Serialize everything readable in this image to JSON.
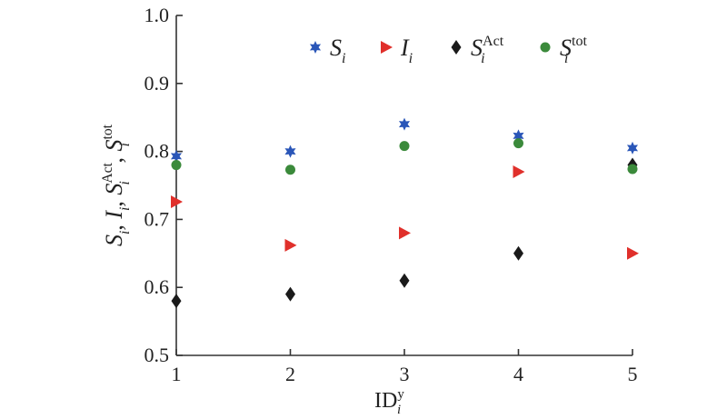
{
  "chart_data": {
    "type": "scatter",
    "x": [
      1,
      2,
      3,
      4,
      5
    ],
    "xlim": [
      1,
      5
    ],
    "ylim": [
      0.5,
      1.0
    ],
    "xticks": [
      "1",
      "2",
      "3",
      "4",
      "5"
    ],
    "yticks": [
      "0.5",
      "0.6",
      "0.7",
      "0.8",
      "0.9",
      "1.0"
    ],
    "xlabel": {
      "base": "ID",
      "sub": "i",
      "sup": "y"
    },
    "ylabel": {
      "parts": [
        {
          "base": "S",
          "sub": "i",
          "sep": ", "
        },
        {
          "base": "I",
          "sub": "i",
          "sep": ", "
        },
        {
          "base": "S",
          "sub": "i",
          "sup": "Act",
          "sep": ", "
        },
        {
          "base": "S",
          "sub": "i",
          "sup": "tot",
          "sep": ""
        }
      ]
    },
    "grid": false,
    "legend_position": "top",
    "series": [
      {
        "name": "S_i",
        "label": {
          "base": "S",
          "sub": "i",
          "sup": ""
        },
        "marker": "star",
        "color": "#2a56b8",
        "values": [
          0.793,
          0.8,
          0.84,
          0.823,
          0.805
        ]
      },
      {
        "name": "I_i",
        "label": {
          "base": "I",
          "sub": "i",
          "sup": ""
        },
        "marker": "triangle-right",
        "color": "#e0302b",
        "values": [
          0.726,
          0.662,
          0.68,
          0.77,
          0.65
        ]
      },
      {
        "name": "S_i^Act",
        "label": {
          "base": "S",
          "sub": "i",
          "sup": "Act"
        },
        "marker": "diamond",
        "color": "#1a1a1a",
        "values": [
          0.58,
          0.59,
          0.61,
          0.65,
          0.78
        ]
      },
      {
        "name": "S_i^tot",
        "label": {
          "base": "S",
          "sub": "i",
          "sup": "tot"
        },
        "marker": "circle",
        "color": "#3b8a3b",
        "values": [
          0.78,
          0.773,
          0.808,
          0.812,
          0.774
        ]
      }
    ]
  }
}
